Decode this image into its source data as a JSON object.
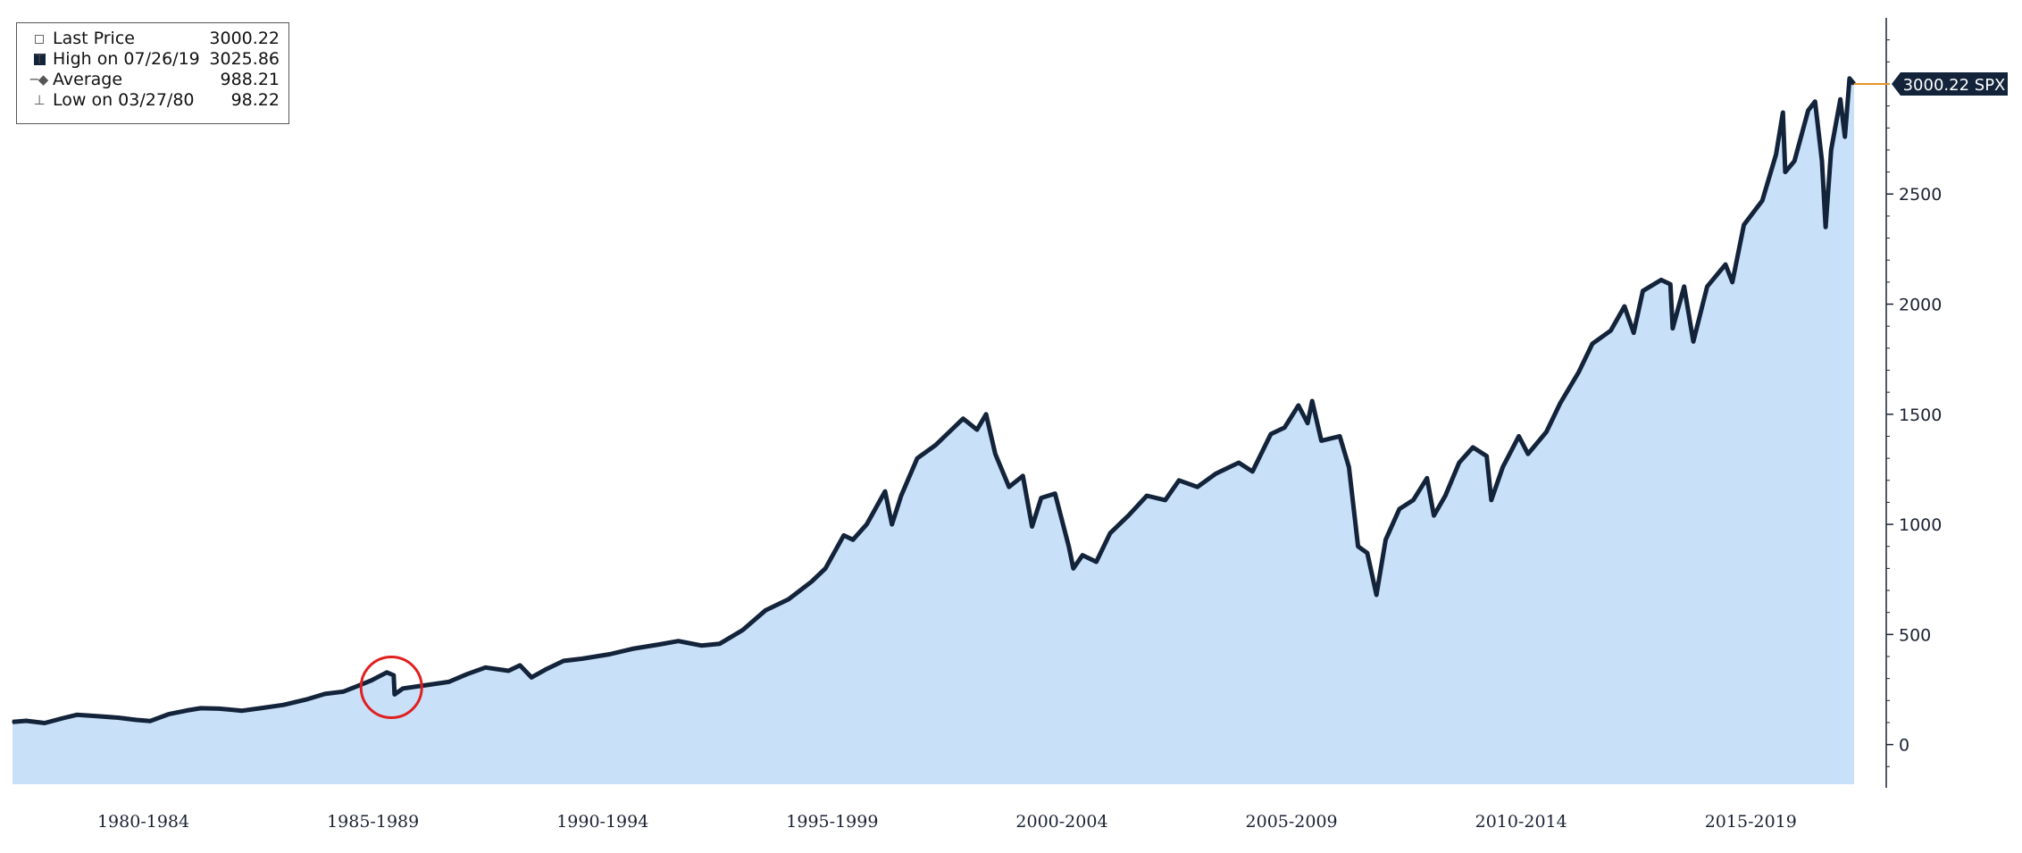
{
  "legend": {
    "rows": [
      {
        "label": "Last Price",
        "value": "3000.22",
        "icon": "filled-square-icon"
      },
      {
        "label": "High on 07/26/19",
        "value": "3025.86",
        "icon": "high-marker-icon"
      },
      {
        "label": "Average",
        "value": "988.21",
        "icon": "average-marker-icon"
      },
      {
        "label": "Low on 03/27/80",
        "value": "98.22",
        "icon": "low-marker-icon"
      }
    ]
  },
  "price_tag": {
    "text": "3000.22 SPX"
  },
  "colors": {
    "line": "#13233a",
    "fill": "#c8e1f9",
    "tag_bg": "#13233a",
    "tag_line": "#e8922a",
    "annotation": "#e02020"
  },
  "chart_data": {
    "type": "area",
    "x_tick_labels": [
      "1980-1984",
      "1985-1989",
      "1990-1994",
      "1995-1999",
      "2000-2004",
      "2005-2009",
      "2010-2014",
      "2015-2019"
    ],
    "y_ticks": [
      0,
      500,
      1000,
      1500,
      2000,
      2500
    ],
    "ylim": [
      -180,
      3300
    ],
    "xlim": [
      1979.5,
      2019.6
    ],
    "series": [
      {
        "points": [
          [
            1979.5,
            103
          ],
          [
            1979.8,
            108
          ],
          [
            1980.2,
            98
          ],
          [
            1980.6,
            120
          ],
          [
            1980.9,
            135
          ],
          [
            1981.3,
            130
          ],
          [
            1981.8,
            122
          ],
          [
            1982.2,
            112
          ],
          [
            1982.5,
            107
          ],
          [
            1982.9,
            138
          ],
          [
            1983.3,
            155
          ],
          [
            1983.6,
            165
          ],
          [
            1984.0,
            163
          ],
          [
            1984.5,
            154
          ],
          [
            1984.9,
            165
          ],
          [
            1985.4,
            180
          ],
          [
            1985.9,
            205
          ],
          [
            1986.3,
            230
          ],
          [
            1986.7,
            240
          ],
          [
            1987.0,
            265
          ],
          [
            1987.3,
            290
          ],
          [
            1987.65,
            328
          ],
          [
            1987.8,
            315
          ],
          [
            1987.82,
            228
          ],
          [
            1988.0,
            255
          ],
          [
            1988.5,
            270
          ],
          [
            1989.0,
            285
          ],
          [
            1989.4,
            320
          ],
          [
            1989.8,
            350
          ],
          [
            1990.3,
            335
          ],
          [
            1990.55,
            360
          ],
          [
            1990.8,
            305
          ],
          [
            1991.1,
            340
          ],
          [
            1991.5,
            380
          ],
          [
            1991.9,
            390
          ],
          [
            1992.5,
            410
          ],
          [
            1993.0,
            435
          ],
          [
            1993.6,
            455
          ],
          [
            1994.0,
            470
          ],
          [
            1994.5,
            450
          ],
          [
            1994.9,
            458
          ],
          [
            1995.4,
            520
          ],
          [
            1995.9,
            610
          ],
          [
            1996.4,
            660
          ],
          [
            1996.9,
            740
          ],
          [
            1997.2,
            800
          ],
          [
            1997.6,
            950
          ],
          [
            1997.8,
            930
          ],
          [
            1998.1,
            1000
          ],
          [
            1998.5,
            1150
          ],
          [
            1998.65,
            1000
          ],
          [
            1998.85,
            1130
          ],
          [
            1999.2,
            1300
          ],
          [
            1999.6,
            1360
          ],
          [
            1999.9,
            1420
          ],
          [
            2000.2,
            1480
          ],
          [
            2000.5,
            1430
          ],
          [
            2000.7,
            1500
          ],
          [
            2000.9,
            1320
          ],
          [
            2001.2,
            1170
          ],
          [
            2001.5,
            1220
          ],
          [
            2001.7,
            990
          ],
          [
            2001.9,
            1120
          ],
          [
            2002.2,
            1140
          ],
          [
            2002.5,
            900
          ],
          [
            2002.6,
            800
          ],
          [
            2002.8,
            860
          ],
          [
            2003.1,
            830
          ],
          [
            2003.4,
            960
          ],
          [
            2003.8,
            1040
          ],
          [
            2004.2,
            1130
          ],
          [
            2004.6,
            1110
          ],
          [
            2004.9,
            1200
          ],
          [
            2005.3,
            1170
          ],
          [
            2005.7,
            1230
          ],
          [
            2006.2,
            1280
          ],
          [
            2006.5,
            1240
          ],
          [
            2006.9,
            1410
          ],
          [
            2007.2,
            1440
          ],
          [
            2007.5,
            1540
          ],
          [
            2007.7,
            1460
          ],
          [
            2007.8,
            1560
          ],
          [
            2008.0,
            1380
          ],
          [
            2008.4,
            1400
          ],
          [
            2008.6,
            1260
          ],
          [
            2008.8,
            900
          ],
          [
            2009.0,
            870
          ],
          [
            2009.2,
            680
          ],
          [
            2009.4,
            930
          ],
          [
            2009.7,
            1070
          ],
          [
            2010.0,
            1110
          ],
          [
            2010.3,
            1210
          ],
          [
            2010.45,
            1040
          ],
          [
            2010.7,
            1130
          ],
          [
            2011.0,
            1280
          ],
          [
            2011.3,
            1350
          ],
          [
            2011.6,
            1310
          ],
          [
            2011.7,
            1110
          ],
          [
            2011.95,
            1260
          ],
          [
            2012.3,
            1400
          ],
          [
            2012.5,
            1320
          ],
          [
            2012.9,
            1420
          ],
          [
            2013.2,
            1550
          ],
          [
            2013.6,
            1690
          ],
          [
            2013.9,
            1820
          ],
          [
            2014.3,
            1880
          ],
          [
            2014.6,
            1990
          ],
          [
            2014.8,
            1870
          ],
          [
            2015.0,
            2060
          ],
          [
            2015.4,
            2110
          ],
          [
            2015.6,
            2090
          ],
          [
            2015.65,
            1890
          ],
          [
            2015.9,
            2080
          ],
          [
            2016.1,
            1830
          ],
          [
            2016.4,
            2080
          ],
          [
            2016.8,
            2180
          ],
          [
            2016.95,
            2100
          ],
          [
            2017.2,
            2360
          ],
          [
            2017.6,
            2470
          ],
          [
            2017.9,
            2680
          ],
          [
            2018.05,
            2870
          ],
          [
            2018.1,
            2600
          ],
          [
            2018.3,
            2650
          ],
          [
            2018.6,
            2880
          ],
          [
            2018.75,
            2920
          ],
          [
            2018.9,
            2650
          ],
          [
            2018.98,
            2350
          ],
          [
            2019.1,
            2700
          ],
          [
            2019.3,
            2930
          ],
          [
            2019.4,
            2760
          ],
          [
            2019.5,
            3025
          ],
          [
            2019.6,
            3000
          ]
        ]
      }
    ]
  }
}
